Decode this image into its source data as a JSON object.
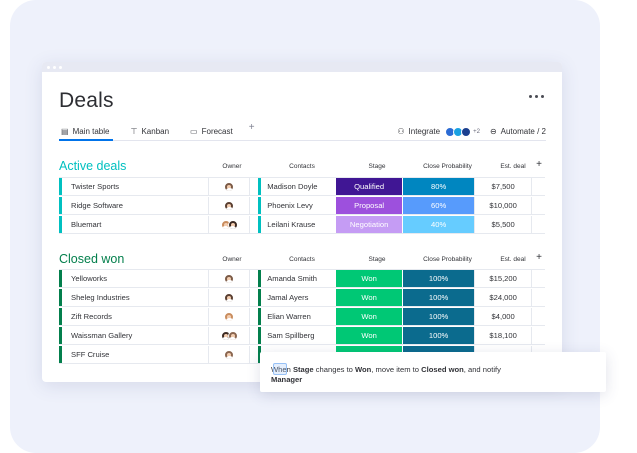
{
  "board": {
    "title": "Deals"
  },
  "tabs": [
    {
      "label": "Main table",
      "icon": "table-icon",
      "active": true
    },
    {
      "label": "Kanban",
      "icon": "kanban-icon",
      "active": false
    },
    {
      "label": "Forecast",
      "icon": "forecast-icon",
      "active": false
    }
  ],
  "toolbar": {
    "integrate_label": "Integrate",
    "integrations_more": "+2",
    "automate_label": "Automate / 2"
  },
  "columns": {
    "owner": "Owner",
    "contacts": "Contacts",
    "stage": "Stage",
    "probability": "Close Probability",
    "estimate": "Est. deal"
  },
  "groups": [
    {
      "title": "Active deals",
      "color": "#00c0c0",
      "rows": [
        {
          "name": "Twister Sports",
          "contact": "Madison Doyle",
          "stage": "Qualified",
          "stage_color": "#401694",
          "prob": "80%",
          "prob_color": "#0086c0",
          "est": "$7,500",
          "owners": 1
        },
        {
          "name": "Ridge Software",
          "contact": "Phoenix Levy",
          "stage": "Proposal",
          "stage_color": "#9d50dd",
          "prob": "60%",
          "prob_color": "#579bfc",
          "est": "$10,000",
          "owners": 1
        },
        {
          "name": "Bluemart",
          "contact": "Leilani Krause",
          "stage": "Negotiation",
          "stage_color": "#c59cf4",
          "prob": "40%",
          "prob_color": "#66ccff",
          "est": "$5,500",
          "owners": 2
        }
      ]
    },
    {
      "title": "Closed won",
      "color": "#037f4c",
      "rows": [
        {
          "name": "Yelloworks",
          "contact": "Amanda Smith",
          "stage": "Won",
          "stage_color": "#00c875",
          "prob": "100%",
          "prob_color": "#0b6b8e",
          "est": "$15,200",
          "owners": 1
        },
        {
          "name": "Sheleg Industries",
          "contact": "Jamal Ayers",
          "stage": "Won",
          "stage_color": "#00c875",
          "prob": "100%",
          "prob_color": "#0b6b8e",
          "est": "$24,000",
          "owners": 1
        },
        {
          "name": "Zift Records",
          "contact": "Elian Warren",
          "stage": "Won",
          "stage_color": "#00c875",
          "prob": "100%",
          "prob_color": "#0b6b8e",
          "est": "$4,000",
          "owners": 1
        },
        {
          "name": "Waissman Gallery",
          "contact": "Sam Spillberg",
          "stage": "Won",
          "stage_color": "#00c875",
          "prob": "100%",
          "prob_color": "#0b6b8e",
          "est": "$18,100",
          "owners": 2
        },
        {
          "name": "SFF Cruise",
          "contact": "",
          "stage": "",
          "stage_color": "#00c875",
          "prob": "",
          "prob_color": "#0b6b8e",
          "est": "",
          "owners": 1
        }
      ]
    }
  ],
  "automation": {
    "p1": "When ",
    "trigger": "Stage",
    "p2": " changes to ",
    "value": "Won",
    "p3": ", move item to ",
    "target": "Closed won",
    "p4": ", and notify ",
    "notify": "Manager"
  }
}
